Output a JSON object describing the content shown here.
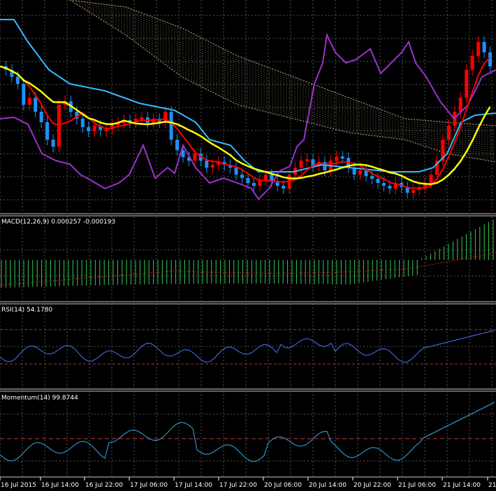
{
  "chart_data": [
    {
      "type": "candlestick",
      "panel": "price",
      "description_overlays": [
        "ichimoku cloud",
        "moving averages",
        "purple line"
      ],
      "colors": {
        "bull": "#ff0000",
        "bear": "#1e90ff",
        "ma_fast": "#ff0000",
        "ma_slow": "#ffff00",
        "kijun": "#33bbff",
        "chikou": "#9933cc",
        "cloud": "#d8c8a0"
      }
    },
    {
      "type": "bar",
      "panel": "macd",
      "label": "MACD(12,26,9) 0.000257 -0.000193",
      "colors": {
        "histogram": "#33cc55",
        "signal": "#cc2222"
      }
    },
    {
      "type": "line",
      "panel": "rsi",
      "label": "RSI(14) 54.1780",
      "colors": {
        "line": "#4477ff",
        "levels": "#aa3333"
      }
    },
    {
      "type": "line",
      "panel": "momentum",
      "label": "Momentum(14) 99.8744",
      "colors": {
        "line": "#33aaee",
        "level": "#cc3333"
      }
    }
  ],
  "xaxis": {
    "ticks": [
      "16 Jul 2015",
      "16 Jul 14:00",
      "16 Jul 22:00",
      "17 Jul 06:00",
      "17 Jul 14:00",
      "17 Jul 22:00",
      "20 Jul 06:00",
      "20 Jul 14:00",
      "20 Jul 22:00",
      "21 Jul 06:00",
      "21 Jul 14:00",
      "21"
    ]
  }
}
